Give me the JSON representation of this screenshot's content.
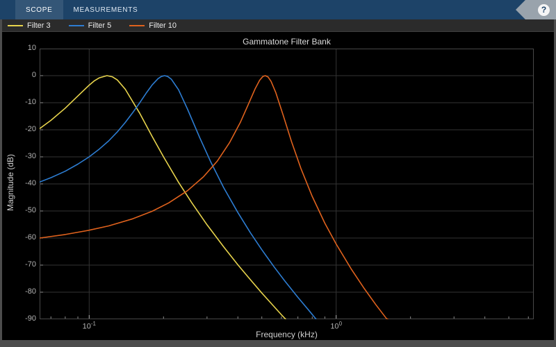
{
  "toolbar": {
    "tabs": [
      {
        "label": "SCOPE",
        "active": true
      },
      {
        "label": "MEASUREMENTS",
        "active": false
      }
    ],
    "help_label": "?",
    "bg_color": "#1d4368"
  },
  "chart_data": {
    "type": "line",
    "title": "Gammatone Filter Bank",
    "xlabel": "Frequency (kHz)",
    "ylabel": "Magnitude (dB)",
    "xscale": "log",
    "xlim": [
      0.063,
      6.31
    ],
    "ylim": [
      -90,
      10
    ],
    "grid": true,
    "legend_position": "top-left",
    "plot_bg": "#000000",
    "grid_color": "#333333",
    "yticks": [
      10,
      0,
      -10,
      -20,
      -30,
      -40,
      -50,
      -60,
      -70,
      -80,
      -90
    ],
    "xticks_major": [
      {
        "value": 0.1,
        "base": "10",
        "exp": "-1"
      },
      {
        "value": 1,
        "base": "10",
        "exp": "0"
      }
    ],
    "xticks_minor": [
      0.07,
      0.08,
      0.09,
      0.2,
      0.3,
      0.4,
      0.5,
      0.6,
      0.7,
      0.8,
      0.9,
      2,
      3,
      4,
      5,
      6
    ],
    "series": [
      {
        "name": "Filter 3",
        "color": "#e8d44c",
        "points": [
          [
            0.063,
            -19.6
          ],
          [
            0.07,
            -16.5
          ],
          [
            0.08,
            -12.0
          ],
          [
            0.09,
            -7.5
          ],
          [
            0.1,
            -3.5
          ],
          [
            0.105,
            -1.9
          ],
          [
            0.11,
            -0.8
          ],
          [
            0.118,
            0
          ],
          [
            0.124,
            -0.4
          ],
          [
            0.13,
            -1.6
          ],
          [
            0.14,
            -5.0
          ],
          [
            0.16,
            -13.8
          ],
          [
            0.18,
            -22.5
          ],
          [
            0.2,
            -30.0
          ],
          [
            0.23,
            -39.4
          ],
          [
            0.26,
            -46.9
          ],
          [
            0.3,
            -55.1
          ],
          [
            0.35,
            -63.2
          ],
          [
            0.4,
            -69.9
          ],
          [
            0.45,
            -75.4
          ],
          [
            0.5,
            -80.3
          ],
          [
            0.55,
            -84.5
          ],
          [
            0.6,
            -88.3
          ],
          [
            0.625,
            -90
          ]
        ]
      },
      {
        "name": "Filter 5",
        "color": "#2d7dd2",
        "points": [
          [
            0.063,
            -39.3
          ],
          [
            0.07,
            -37.7
          ],
          [
            0.08,
            -35.3
          ],
          [
            0.09,
            -32.7
          ],
          [
            0.1,
            -30.0
          ],
          [
            0.11,
            -27.1
          ],
          [
            0.12,
            -24.1
          ],
          [
            0.13,
            -20.8
          ],
          [
            0.14,
            -17.3
          ],
          [
            0.15,
            -13.7
          ],
          [
            0.16,
            -10.1
          ],
          [
            0.17,
            -6.5
          ],
          [
            0.18,
            -3.4
          ],
          [
            0.19,
            -1.1
          ],
          [
            0.196,
            -0.3
          ],
          [
            0.202,
            0
          ],
          [
            0.208,
            -0.3
          ],
          [
            0.215,
            -1.3
          ],
          [
            0.23,
            -5.2
          ],
          [
            0.25,
            -12.3
          ],
          [
            0.28,
            -22.8
          ],
          [
            0.31,
            -31.7
          ],
          [
            0.35,
            -41.3
          ],
          [
            0.4,
            -50.6
          ],
          [
            0.45,
            -58.1
          ],
          [
            0.5,
            -64.3
          ],
          [
            0.56,
            -70.6
          ],
          [
            0.62,
            -75.9
          ],
          [
            0.7,
            -81.9
          ],
          [
            0.78,
            -87.0
          ],
          [
            0.83,
            -90
          ]
        ]
      },
      {
        "name": "Filter 10",
        "color": "#e0621d",
        "points": [
          [
            0.063,
            -60.0
          ],
          [
            0.08,
            -58.7
          ],
          [
            0.1,
            -57.1
          ],
          [
            0.12,
            -55.5
          ],
          [
            0.15,
            -52.9
          ],
          [
            0.18,
            -50.1
          ],
          [
            0.21,
            -47.0
          ],
          [
            0.25,
            -42.5
          ],
          [
            0.29,
            -37.4
          ],
          [
            0.33,
            -31.6
          ],
          [
            0.37,
            -24.8
          ],
          [
            0.41,
            -17.1
          ],
          [
            0.44,
            -10.8
          ],
          [
            0.47,
            -4.8
          ],
          [
            0.49,
            -1.7
          ],
          [
            0.505,
            -0.3
          ],
          [
            0.516,
            0
          ],
          [
            0.53,
            -0.5
          ],
          [
            0.545,
            -2.1
          ],
          [
            0.57,
            -6.3
          ],
          [
            0.61,
            -14.6
          ],
          [
            0.66,
            -24.5
          ],
          [
            0.72,
            -34.3
          ],
          [
            0.8,
            -44.6
          ],
          [
            0.9,
            -54.5
          ],
          [
            1.0,
            -62.2
          ],
          [
            1.15,
            -71.4
          ],
          [
            1.3,
            -78.7
          ],
          [
            1.45,
            -84.7
          ],
          [
            1.6,
            -89.8
          ],
          [
            1.62,
            -90
          ]
        ]
      }
    ]
  }
}
